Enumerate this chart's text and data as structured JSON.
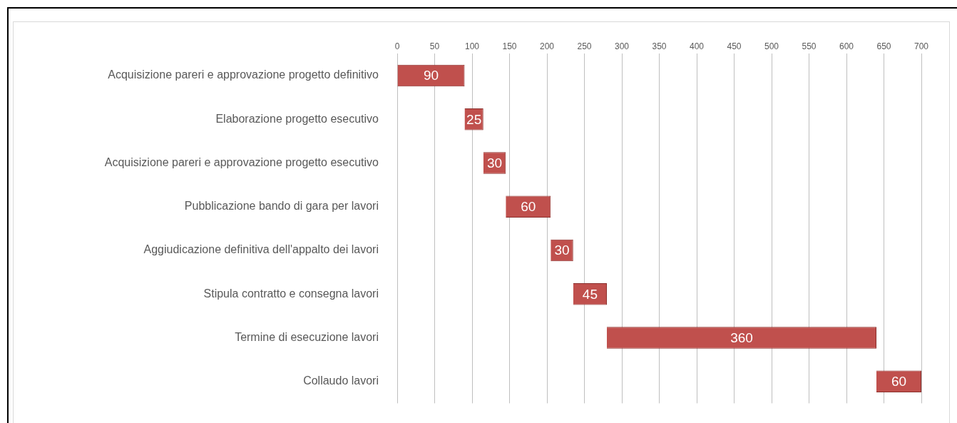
{
  "chart_data": {
    "type": "bar",
    "orientation": "horizontal",
    "categories": [
      "Acquisizione pareri e approvazione progetto definitivo",
      "Elaborazione progetto esecutivo",
      "Acquisizione pareri e approvazione progetto esecutivo",
      "Pubblicazione bando di gara per lavori",
      "Aggiudicazione definitiva dell'appalto dei lavori",
      "Stipula contratto e consegna lavori",
      "Termine di esecuzione lavori",
      "Collaudo lavori"
    ],
    "values": [
      90,
      25,
      30,
      60,
      30,
      45,
      360,
      60
    ],
    "base": [
      0,
      90,
      115,
      145,
      205,
      235,
      280,
      640
    ],
    "color": "#c0504d",
    "xlim": [
      0,
      700
    ],
    "xticks": [
      0,
      50,
      100,
      150,
      200,
      250,
      300,
      350,
      400,
      450,
      500,
      550,
      600,
      650,
      700
    ],
    "grid": "x",
    "data_labels": true,
    "legend": false
  }
}
